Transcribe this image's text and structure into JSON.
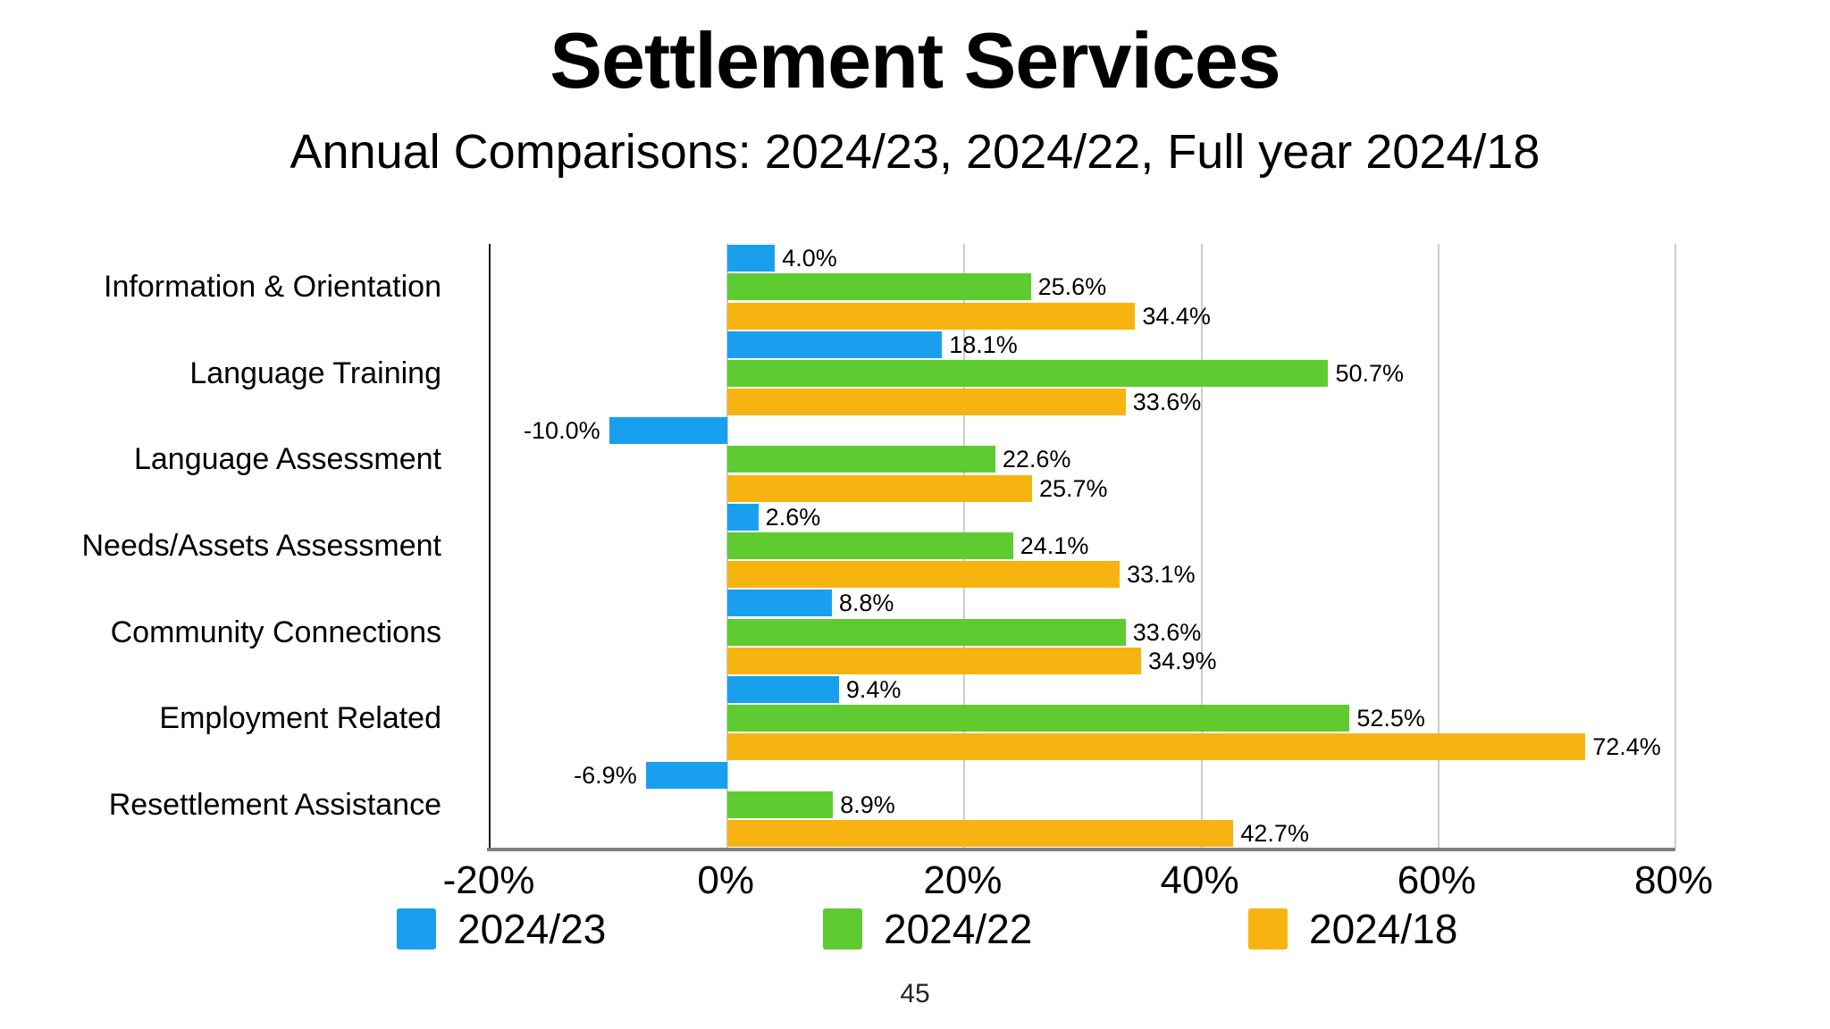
{
  "title": "Settlement Services",
  "subtitle": "Annual Comparisons: 2024/23, 2024/22, Full year 2024/18",
  "page_number": "45",
  "chart_data": {
    "type": "bar",
    "orientation": "horizontal",
    "title": "Settlement Services",
    "subtitle": "Annual Comparisons: 2024/23, 2024/22, Full year 2024/18",
    "categories": [
      "Information & Orientation",
      "Language Training",
      "Language Assessment",
      "Needs/Assets Assessment",
      "Community Connections",
      "Employment Related",
      "Resettlement Assistance"
    ],
    "series": [
      {
        "name": "2024/23",
        "color": "#18A0EE",
        "values": [
          4.0,
          18.1,
          -10.0,
          2.6,
          8.8,
          9.4,
          -6.9
        ]
      },
      {
        "name": "2024/22",
        "color": "#5ECB31",
        "values": [
          25.6,
          50.7,
          22.6,
          24.1,
          33.6,
          52.5,
          8.9
        ]
      },
      {
        "name": "2024/18",
        "color": "#F7B410",
        "values": [
          34.4,
          33.6,
          25.7,
          33.1,
          34.9,
          72.4,
          42.7
        ]
      }
    ],
    "value_label_format": "one_decimal_percent",
    "xlim": [
      -20,
      80
    ],
    "xticks": [
      {
        "value": -20,
        "label": "-20%"
      },
      {
        "value": 0,
        "label": "0%"
      },
      {
        "value": 20,
        "label": "20%"
      },
      {
        "value": 40,
        "label": "40%"
      },
      {
        "value": 60,
        "label": "60%"
      },
      {
        "value": 80,
        "label": "80%"
      }
    ],
    "grid": "vertical_light_gray",
    "legend_position": "bottom"
  }
}
